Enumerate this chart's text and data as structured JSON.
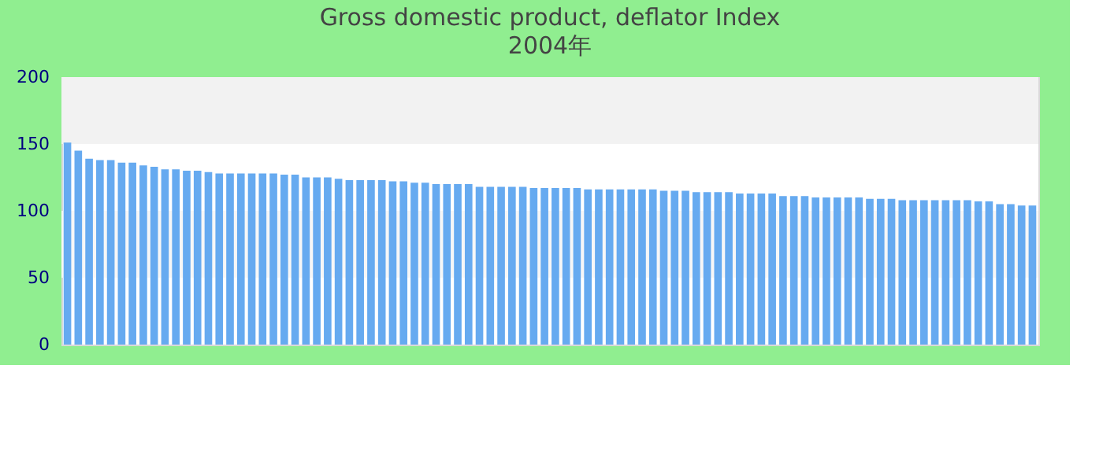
{
  "chart_data": {
    "type": "bar",
    "title": "Gross domestic product, deflator  Index",
    "subtitle": "2004年",
    "categories": [
      null,
      null,
      null,
      null,
      null,
      null,
      null,
      null,
      null,
      null,
      null,
      null,
      null,
      null,
      null,
      null,
      null,
      null,
      null,
      null,
      null,
      null,
      null,
      null,
      null,
      null,
      null,
      null,
      null,
      null,
      null,
      null,
      null,
      null,
      null,
      null,
      null,
      null,
      null,
      null,
      null,
      null,
      null,
      null,
      null,
      null,
      null,
      null,
      null,
      null,
      null,
      null,
      null,
      null,
      null,
      null,
      null,
      null,
      null,
      null,
      null,
      null,
      null,
      null,
      null,
      null,
      null,
      null,
      null,
      null,
      null,
      null,
      null,
      null,
      null,
      null,
      null,
      null,
      null,
      null,
      null,
      null,
      null,
      null,
      null,
      null,
      null,
      null,
      null,
      null
    ],
    "values": [
      151,
      145,
      139,
      138,
      138,
      136,
      136,
      134,
      133,
      131,
      131,
      130,
      130,
      129,
      128,
      128,
      128,
      128,
      128,
      128,
      127,
      127,
      125,
      125,
      125,
      124,
      123,
      123,
      123,
      123,
      122,
      122,
      121,
      121,
      120,
      120,
      120,
      120,
      118,
      118,
      118,
      118,
      118,
      117,
      117,
      117,
      117,
      117,
      116,
      116,
      116,
      116,
      116,
      116,
      116,
      115,
      115,
      115,
      114,
      114,
      114,
      114,
      113,
      113,
      113,
      113,
      111,
      111,
      111,
      110,
      110,
      110,
      110,
      110,
      109,
      109,
      109,
      108,
      108,
      108,
      108,
      108,
      108,
      108,
      107,
      107,
      105,
      105,
      104,
      104
    ],
    "color": "#66aaf0",
    "ylim": [
      0,
      200
    ],
    "yticks": [
      0,
      50,
      100,
      150,
      200
    ],
    "bands": [
      {
        "axis": "y",
        "from": 50,
        "to": 100,
        "color": "#f7f7f7"
      },
      {
        "axis": "y",
        "from": 150,
        "to": 200,
        "color": "#f2f2f2"
      }
    ]
  }
}
